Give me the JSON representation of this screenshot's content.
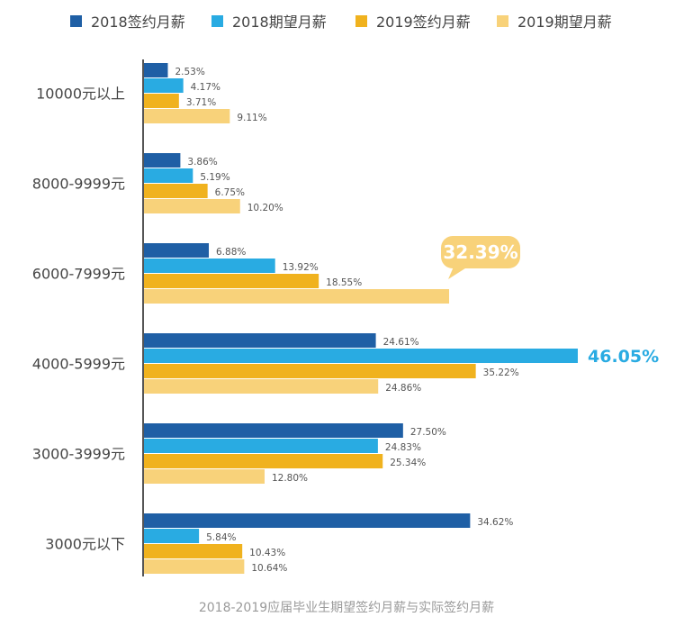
{
  "colors": {
    "s2018_sign": "#1f5fa5",
    "s2018_expect": "#29abe2",
    "s2019_sign": "#f0b21e",
    "s2019_expect": "#f8d27a",
    "axis": "#555555",
    "callout_bg": "#f8d27a",
    "highlight_text": "#29abe2"
  },
  "caption": "2018-2019应届毕业生期望签约月薪与实际签约月薪",
  "chart_data": {
    "type": "bar",
    "orientation": "horizontal",
    "categories": [
      "10000元以上",
      "8000-9999元",
      "6000-7999元",
      "4000-5999元",
      "3000-3999元",
      "3000元以下"
    ],
    "series": [
      {
        "name": "2018签约月薪",
        "values": [
          2.53,
          3.86,
          6.88,
          24.61,
          27.5,
          34.62
        ],
        "labels": [
          "2.53%",
          "3.86%",
          "6.88%",
          "24.61%",
          "27.50%",
          "34.62%"
        ]
      },
      {
        "name": "2018期望月薪",
        "values": [
          4.17,
          5.19,
          13.92,
          46.05,
          24.83,
          5.84
        ],
        "labels": [
          "4.17%",
          "5.19%",
          "13.92%",
          "46.05%",
          "24.83%",
          "5.84%"
        ]
      },
      {
        "name": "2019签约月薪",
        "values": [
          3.71,
          6.75,
          18.55,
          35.22,
          25.34,
          10.43
        ],
        "labels": [
          "3.71%",
          "6.75%",
          "18.55%",
          "35.22%",
          "25.34%",
          "10.43%"
        ]
      },
      {
        "name": "2019期望月薪",
        "values": [
          9.11,
          10.2,
          32.39,
          24.86,
          12.8,
          10.64
        ],
        "labels": [
          "9.11%",
          "10.20%",
          "32.39%",
          "24.86%",
          "12.80%",
          "10.64%"
        ]
      }
    ],
    "highlights": [
      {
        "series": 1,
        "category": 3,
        "style": "large-text"
      },
      {
        "series": 3,
        "category": 2,
        "style": "callout"
      }
    ],
    "xlim": [
      0,
      46.05
    ],
    "legend_position": "top",
    "grid": false
  }
}
